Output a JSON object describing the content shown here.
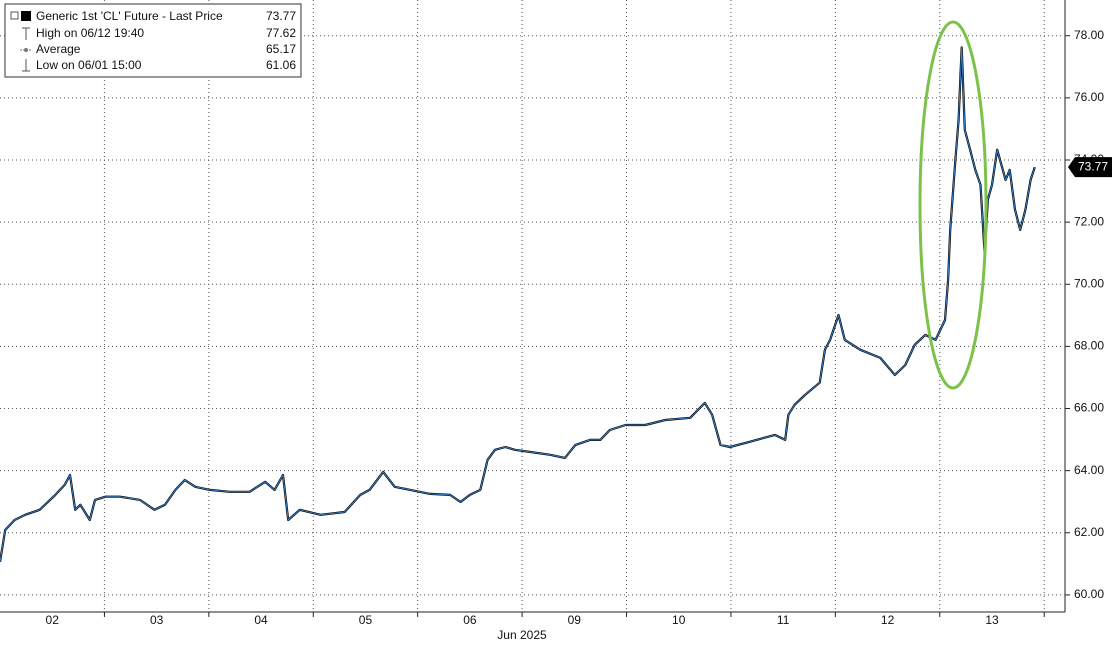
{
  "chart_data": {
    "type": "line",
    "x_label": "Jun 2025",
    "xlim": [
      0,
      10.18
    ],
    "xticks": [
      {
        "value": 0.5,
        "label": "02"
      },
      {
        "value": 1.5,
        "label": "03"
      },
      {
        "value": 2.5,
        "label": "04"
      },
      {
        "value": 3.5,
        "label": "05"
      },
      {
        "value": 4.5,
        "label": "06"
      },
      {
        "value": 5.5,
        "label": "09"
      },
      {
        "value": 6.5,
        "label": "10"
      },
      {
        "value": 7.5,
        "label": "11"
      },
      {
        "value": 8.5,
        "label": "12"
      },
      {
        "value": 9.5,
        "label": "13"
      }
    ],
    "x_gridlines": [
      1,
      2,
      3,
      4,
      5,
      6,
      7,
      8,
      9,
      10
    ],
    "ylim": [
      59.45,
      79.15
    ],
    "yticks": [
      {
        "value": 60,
        "label": "60.00"
      },
      {
        "value": 62,
        "label": "62.00"
      },
      {
        "value": 64,
        "label": "64.00"
      },
      {
        "value": 66,
        "label": "66.00"
      },
      {
        "value": 68,
        "label": "68.00"
      },
      {
        "value": 70,
        "label": "70.00"
      },
      {
        "value": 72,
        "label": "72.00"
      },
      {
        "value": 74,
        "label": "74.00"
      },
      {
        "value": 76,
        "label": "76.00"
      },
      {
        "value": 78,
        "label": "78.00"
      }
    ],
    "grid": true,
    "series": [
      {
        "name": "Generic 1st 'CL' Future - Last Price",
        "color": "#3a7fc4",
        "x": [
          0.0,
          0.05,
          0.14,
          0.24,
          0.38,
          0.53,
          0.62,
          0.67,
          0.72,
          0.77,
          0.86,
          0.91,
          1.01,
          1.15,
          1.34,
          1.48,
          1.58,
          1.68,
          1.77,
          1.87,
          2.01,
          2.2,
          2.39,
          2.54,
          2.63,
          2.71,
          2.76,
          2.87,
          3.07,
          3.3,
          3.45,
          3.54,
          3.67,
          3.78,
          3.93,
          4.12,
          4.31,
          4.41,
          4.5,
          4.6,
          4.67,
          4.74,
          4.84,
          4.93,
          5.08,
          5.27,
          5.41,
          5.51,
          5.65,
          5.75,
          5.84,
          5.99,
          6.18,
          6.37,
          6.61,
          6.75,
          6.82,
          6.9,
          6.99,
          7.18,
          7.42,
          7.52,
          7.55,
          7.61,
          7.71,
          7.85,
          7.9,
          7.95,
          8.03,
          8.09,
          8.24,
          8.43,
          8.57,
          8.67,
          8.76,
          8.86,
          8.96,
          9.05,
          9.08,
          9.1,
          9.15,
          9.18,
          9.2,
          9.21,
          9.24,
          9.29,
          9.34,
          9.39,
          9.43,
          9.46,
          9.5,
          9.55,
          9.63,
          9.67,
          9.72,
          9.77,
          9.82,
          9.87,
          9.91
        ],
        "values": [
          61.06,
          62.09,
          62.41,
          62.58,
          62.74,
          63.22,
          63.54,
          63.86,
          62.74,
          62.9,
          62.41,
          63.06,
          63.16,
          63.16,
          63.06,
          62.74,
          62.9,
          63.38,
          63.7,
          63.48,
          63.38,
          63.32,
          63.32,
          63.64,
          63.38,
          63.86,
          62.41,
          62.74,
          62.58,
          62.67,
          63.22,
          63.38,
          63.96,
          63.48,
          63.38,
          63.25,
          63.22,
          62.99,
          63.22,
          63.38,
          64.35,
          64.67,
          64.76,
          64.67,
          64.6,
          64.51,
          64.41,
          64.83,
          64.99,
          64.99,
          65.31,
          65.47,
          65.47,
          65.63,
          65.7,
          66.18,
          65.8,
          64.83,
          64.76,
          64.93,
          65.15,
          64.99,
          65.8,
          66.12,
          66.44,
          66.83,
          67.89,
          68.21,
          69.01,
          68.21,
          67.89,
          67.63,
          67.08,
          67.4,
          68.05,
          68.37,
          68.21,
          68.85,
          70.14,
          71.75,
          74.01,
          75.29,
          76.9,
          77.62,
          74.97,
          74.33,
          73.68,
          73.2,
          70.95,
          72.72,
          73.2,
          74.33,
          73.36,
          73.68,
          72.4,
          71.75,
          72.4,
          73.36,
          73.77
        ]
      }
    ],
    "legend": [
      {
        "label": "High on 06/12 19:40",
        "value": 77.62
      },
      {
        "label": "Average",
        "value": 65.17
      },
      {
        "label": "Low on 06/01 15:00",
        "value": 61.06
      }
    ]
  }
}
